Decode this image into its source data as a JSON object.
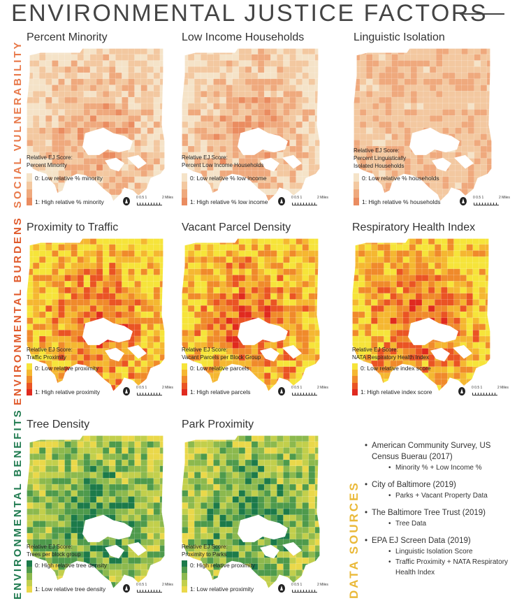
{
  "title": "ENVIRONMENTAL JUSTICE FACTORS",
  "sections": {
    "social": "SOCIAL VULNERABILITY",
    "burdens": "ENVIRONMENTAL BURDENS",
    "benefits": "ENVIRONMENTAL BENEFITS",
    "data_sources": "DATA SOURCES"
  },
  "scale": {
    "ticks": "0  0.5  1",
    "end": "2 Miles"
  },
  "panels": {
    "p1": {
      "title": "Percent Minority",
      "legend_title": "Relative EJ Score:\nPercent Minority",
      "low": "0: Low relative % minority",
      "high": "1: High relative % minority",
      "colors": [
        "#f5e3c8",
        "#f3c8a0",
        "#efa97d",
        "#ea8c60"
      ]
    },
    "p2": {
      "title": "Low Income Households",
      "legend_title": "Relative EJ Score:\nPercent Low Income Households",
      "low": "0: Low relative % low income",
      "high": "1: High relative % low income",
      "colors": [
        "#f5e3c8",
        "#f3c8a0",
        "#efa97d",
        "#ea8c60"
      ]
    },
    "p3": {
      "title": "Linguistic Isolation",
      "legend_title": "Relative EJ Score:\nPercent Linguistically\nIsolated Households",
      "low": "0: Low relative % households",
      "high": "1: High relative % households",
      "colors": [
        "#f5e3c8",
        "#f3c8a0",
        "#efa97d",
        "#ea8c60"
      ]
    },
    "p4": {
      "title": "Proximity to Traffic",
      "legend_title": "Relative EJ Score:\nTraffic Proximity",
      "low": "0: Low relative proximity",
      "high": "1: High relative proximity",
      "colors": [
        "#f6e43a",
        "#f5b731",
        "#f08a2b",
        "#ea5424",
        "#e02a1f"
      ]
    },
    "p5": {
      "title": "Vacant Parcel Density",
      "legend_title": "Relative EJ Score:\nVacant Parcels per Block Group",
      "low": "0: Low relative parcels",
      "high": "1: High relative parcels",
      "colors": [
        "#f6e43a",
        "#f5b731",
        "#f08a2b",
        "#ea5424",
        "#e02a1f"
      ]
    },
    "p6": {
      "title": "Respiratory Health Index",
      "legend_title": "Relative EJ Score:\nNATA Respiratory Health Index",
      "low": "0: Low relative index score",
      "high": "1: High relative index score",
      "colors": [
        "#f6e43a",
        "#f5b731",
        "#f08a2b",
        "#ea5424",
        "#e02a1f"
      ]
    },
    "p7": {
      "title": "Tree Density",
      "legend_title": "Relative EJ Score:\nTrees per block group",
      "low": "0: High relative tree density",
      "high": "1: Low relative tree density",
      "colors": [
        "#1c7a4a",
        "#4e9a4c",
        "#8cb94e",
        "#c2cf4c",
        "#ead84a"
      ]
    },
    "p8": {
      "title": "Park Proximity",
      "legend_title": "Relative EJ Score:\nProximity to Parks",
      "low": "0: High relative proximity",
      "high": "1: Low relative proximity",
      "colors": [
        "#1c7a4a",
        "#4e9a4c",
        "#8cb94e",
        "#c2cf4c",
        "#ead84a"
      ]
    }
  },
  "sources": [
    {
      "name": "American Community Survey, US Census Buerau (2017)",
      "items": [
        "Minority % + Low Income %"
      ]
    },
    {
      "name": "City of Baltimore (2019)",
      "items": [
        "Parks + Vacant Property Data"
      ]
    },
    {
      "name": "The Baltimore Tree Trust (2019)",
      "items": [
        "Tree Data"
      ]
    },
    {
      "name": "EPA EJ Screen Data (2019)",
      "items": [
        "Linguistic Isolation Score",
        "Traffic Proximity + NATA Respiratory Health Index"
      ]
    }
  ]
}
